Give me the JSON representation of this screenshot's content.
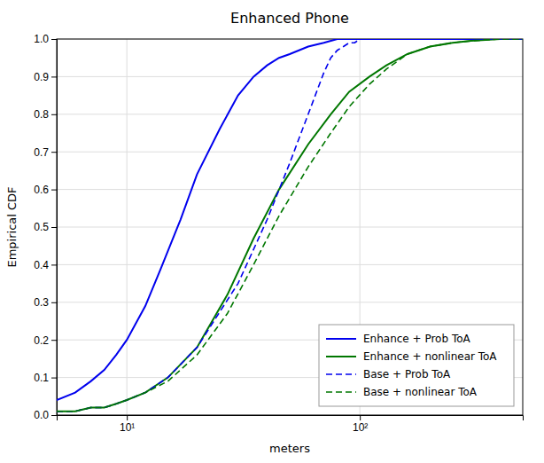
{
  "chart_data": {
    "type": "line",
    "title": "Enhanced Phone",
    "x_label": "meters",
    "y_label": "Empirical CDF",
    "log": "x",
    "xlim": [
      5,
      500
    ],
    "xticks": [
      {
        "value": 10,
        "label": "10¹"
      },
      {
        "value": 100,
        "label": "10²"
      }
    ],
    "ylim": [
      0,
      1.0
    ],
    "yticks": [
      {
        "value": 0,
        "label": "0.0"
      },
      0.1,
      0.2,
      0.3,
      0.4,
      0.5,
      0.6,
      0.7,
      0.8,
      0.9,
      {
        "value": 1.0,
        "label": "1.0"
      }
    ],
    "grid": true,
    "legend": "lower right",
    "series": [
      {
        "name": "Enhance + Prob ToA",
        "color": "#0000EE",
        "line_style": "solid",
        "x": [
          5,
          6,
          7,
          8,
          9,
          10,
          12,
          14,
          17,
          20,
          25,
          30,
          35,
          40,
          45,
          50,
          60,
          70,
          80,
          100,
          150,
          200,
          300,
          500
        ],
        "values": [
          0.04,
          0.06,
          0.09,
          0.12,
          0.16,
          0.2,
          0.29,
          0.39,
          0.52,
          0.64,
          0.76,
          0.85,
          0.9,
          0.93,
          0.95,
          0.96,
          0.98,
          0.99,
          1.0,
          1.0,
          1.0,
          1.0,
          1.0,
          1.0
        ]
      },
      {
        "name": "Enhance + nonlinear ToA",
        "color": "#007700",
        "line_style": "solid",
        "x": [
          5,
          6,
          7,
          8,
          9,
          10,
          12,
          15,
          20,
          27,
          35,
          45,
          60,
          75,
          90,
          110,
          130,
          160,
          200,
          250,
          300,
          400,
          500
        ],
        "values": [
          0.01,
          0.01,
          0.02,
          0.02,
          0.03,
          0.04,
          0.06,
          0.1,
          0.18,
          0.32,
          0.47,
          0.6,
          0.72,
          0.8,
          0.86,
          0.9,
          0.93,
          0.96,
          0.98,
          0.99,
          0.995,
          1.0,
          1.0
        ]
      },
      {
        "name": "Base + Prob ToA",
        "color": "#0000EE",
        "line_style": "dashed",
        "x": [
          5,
          6,
          7,
          8,
          9,
          10,
          12,
          15,
          20,
          30,
          40,
          50,
          60,
          70,
          75,
          80,
          85,
          90,
          95,
          100,
          110,
          120,
          150,
          200,
          300,
          500
        ],
        "values": [
          0.01,
          0.01,
          0.02,
          0.02,
          0.03,
          0.04,
          0.06,
          0.1,
          0.18,
          0.35,
          0.52,
          0.67,
          0.8,
          0.91,
          0.95,
          0.97,
          0.98,
          0.99,
          0.99,
          1.0,
          1.0,
          1.0,
          1.0,
          1.0,
          1.0,
          1.0
        ]
      },
      {
        "name": "Base + nonlinear ToA",
        "color": "#007700",
        "line_style": "dashed",
        "x": [
          5,
          6,
          7,
          8,
          9,
          10,
          12,
          15,
          20,
          27,
          35,
          45,
          60,
          75,
          90,
          110,
          130,
          160,
          200,
          250,
          300,
          400,
          500
        ],
        "values": [
          0.01,
          0.01,
          0.02,
          0.02,
          0.03,
          0.04,
          0.06,
          0.09,
          0.16,
          0.27,
          0.4,
          0.53,
          0.66,
          0.75,
          0.82,
          0.88,
          0.92,
          0.96,
          0.98,
          0.99,
          0.995,
          1.0,
          1.0
        ]
      }
    ]
  }
}
